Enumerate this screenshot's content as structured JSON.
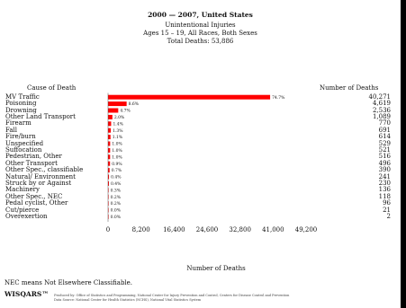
{
  "header": {
    "title": "2000 — 2007, United States",
    "line2": "Unintentional Injuries",
    "line3": "Ages 15 – 19, All Races, Both Sexes",
    "line4": "Total Deaths: 53,886"
  },
  "chart_data": {
    "type": "bar",
    "orientation": "horizontal",
    "cause_header": "Cause of Death",
    "number_header": "Number of Deaths",
    "xlabel": "Number of Deaths",
    "xlim": [
      0,
      49200
    ],
    "xticks": [
      0,
      8200,
      16400,
      24600,
      32800,
      41000,
      49200
    ],
    "xtick_labels": [
      "0",
      "8,200",
      "16,400",
      "24,600",
      "32,800",
      "41,000",
      "49,200"
    ],
    "bar_color": "#ff0000",
    "categories": [
      "MV Traffic",
      "Poisoning",
      "Drowning",
      "Other Land Transport",
      "Firearm",
      "Fall",
      "Fire/burn",
      "Unspecified",
      "Suffocation",
      "Pedestrian, Other",
      "Other Transport",
      "Other Spec., classifiable",
      "Natural/ Environment",
      "Struck by or Against",
      "Machinery",
      "Other Spec., NEC",
      "Pedal cyclist, Other",
      "Cut/pierce",
      "Overexertion"
    ],
    "values": [
      40271,
      4619,
      2536,
      1089,
      770,
      691,
      614,
      529,
      521,
      516,
      496,
      390,
      241,
      230,
      136,
      118,
      96,
      21,
      2
    ],
    "value_labels": [
      "40,271",
      "4,619",
      "2,536",
      "1,089",
      "770",
      "691",
      "614",
      "529",
      "521",
      "516",
      "496",
      "390",
      "241",
      "230",
      "136",
      "118",
      "96",
      "21",
      "2"
    ],
    "percent_labels": [
      "74.7%",
      "8.6%",
      "4.7%",
      "2.0%",
      "1.4%",
      "1.3%",
      "1.1%",
      "1.0%",
      "1.0%",
      "1.0%",
      "0.9%",
      "0.7%",
      "0.4%",
      "0.4%",
      "0.3%",
      "0.2%",
      "0.2%",
      "0.0%",
      "0.0%"
    ]
  },
  "footer": {
    "note": "NEC means Not Elsewhere Classifiable.",
    "brand": "WISQARS™",
    "credit1": "Produced by: Office of Statistics and Programming, National Center for Injury Prevention and Control, Centers for Disease Control and Prevention",
    "credit2": "Data Source: National Center for Health Statistics (NCHS), National Vital Statistics System"
  }
}
